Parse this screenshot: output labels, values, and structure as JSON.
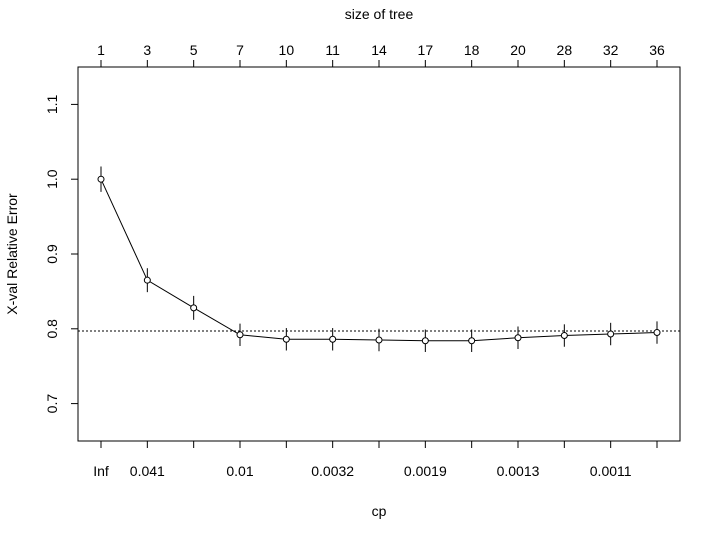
{
  "chart_data": {
    "type": "line",
    "title": "",
    "xlabel": "cp",
    "x2label": "size of tree",
    "ylabel": "X-val Relative Error",
    "ylim": [
      0.65,
      1.15
    ],
    "yticks": [
      0.7,
      0.8,
      0.9,
      1.0,
      1.1
    ],
    "ytick_labels": [
      "0.7",
      "0.8",
      "0.9",
      "1.0",
      "1.1"
    ],
    "size_of_tree": [
      "1",
      "3",
      "5",
      "7",
      "10",
      "11",
      "14",
      "17",
      "18",
      "20",
      "28",
      "32",
      "36"
    ],
    "cp_tick_labels": [
      "Inf",
      "0.041",
      "",
      "0.01",
      "",
      "0.0032",
      "",
      "0.0019",
      "",
      "0.0013",
      "",
      "0.0011",
      ""
    ],
    "series": [
      {
        "values": [
          1.0,
          0.865,
          0.828,
          0.792,
          0.786,
          0.786,
          0.785,
          0.784,
          0.784,
          0.788,
          0.791,
          0.793,
          0.795
        ],
        "error": [
          0.017,
          0.016,
          0.016,
          0.015,
          0.015,
          0.015,
          0.015,
          0.015,
          0.015,
          0.015,
          0.015,
          0.015,
          0.015
        ]
      }
    ],
    "reference_line": 0.797,
    "grid": false,
    "legend": "none"
  }
}
